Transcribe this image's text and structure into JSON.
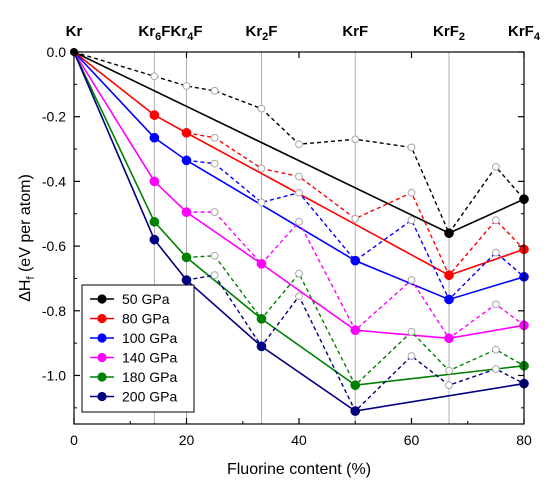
{
  "chart_data": {
    "type": "line",
    "xlabel": "Fluorine content (%)",
    "ylabel_main": "ΔH",
    "ylabel_sub": "f",
    "ylabel_rest": " (eV per atom)",
    "xlim": [
      0,
      80
    ],
    "ylim": [
      -1.15,
      0
    ],
    "xticks": [
      0,
      20,
      40,
      60,
      80
    ],
    "yticks": [
      0.0,
      -0.2,
      -0.4,
      -0.6,
      -0.8,
      -1.0
    ],
    "ytick_labels": [
      "0.0",
      "-0.2",
      "-0.4",
      "-0.6",
      "-0.8",
      "-1.0"
    ],
    "grid": "vertical lines at compositions",
    "legend_position": "bottom-left",
    "compositions": [
      {
        "x": 0,
        "label": "Kr",
        "sub": "",
        "tail": ""
      },
      {
        "x": 14.29,
        "label": "Kr",
        "sub": "6",
        "tail": "F"
      },
      {
        "x": 20,
        "label": "Kr",
        "sub": "4",
        "tail": "F"
      },
      {
        "x": 33.33,
        "label": "Kr",
        "sub": "2",
        "tail": "F"
      },
      {
        "x": 50,
        "label": "KrF",
        "sub": "",
        "tail": ""
      },
      {
        "x": 66.67,
        "label": "KrF",
        "sub": "2",
        "tail": ""
      },
      {
        "x": 80,
        "label": "KrF",
        "sub": "4",
        "tail": ""
      }
    ],
    "series": [
      {
        "name": "50 GPa",
        "color": "#000000",
        "hull": [
          [
            0,
            0
          ],
          [
            66.67,
            -0.56
          ],
          [
            80,
            -0.455
          ]
        ],
        "stable_points": [
          [
            66.67,
            -0.56
          ],
          [
            80,
            -0.455
          ]
        ],
        "metastable": [
          [
            0,
            0
          ],
          [
            14.29,
            -0.075
          ],
          [
            20,
            -0.105
          ],
          [
            25,
            -0.12
          ],
          [
            33.33,
            -0.175
          ],
          [
            40,
            -0.285
          ],
          [
            50,
            -0.27
          ],
          [
            60,
            -0.295
          ],
          [
            66.67,
            -0.56
          ],
          [
            75,
            -0.355
          ],
          [
            80,
            -0.455
          ]
        ],
        "open_points": [
          [
            14.29,
            -0.075
          ],
          [
            20,
            -0.105
          ],
          [
            25,
            -0.12
          ],
          [
            33.33,
            -0.175
          ],
          [
            40,
            -0.285
          ],
          [
            50,
            -0.27
          ],
          [
            60,
            -0.295
          ],
          [
            75,
            -0.355
          ]
        ]
      },
      {
        "name": "80 GPa",
        "color": "#ff0000",
        "hull": [
          [
            0,
            0
          ],
          [
            14.29,
            -0.195
          ],
          [
            20,
            -0.25
          ],
          [
            66.67,
            -0.69
          ],
          [
            80,
            -0.61
          ]
        ],
        "stable_points": [
          [
            14.29,
            -0.195
          ],
          [
            20,
            -0.25
          ],
          [
            66.67,
            -0.69
          ],
          [
            80,
            -0.61
          ]
        ],
        "metastable": [
          [
            20,
            -0.25
          ],
          [
            25,
            -0.265
          ],
          [
            33.33,
            -0.36
          ],
          [
            40,
            -0.385
          ],
          [
            50,
            -0.515
          ],
          [
            60,
            -0.435
          ],
          [
            66.67,
            -0.69
          ],
          [
            75,
            -0.52
          ],
          [
            80,
            -0.61
          ]
        ],
        "open_points": [
          [
            25,
            -0.265
          ],
          [
            33.33,
            -0.36
          ],
          [
            40,
            -0.385
          ],
          [
            50,
            -0.515
          ],
          [
            60,
            -0.435
          ],
          [
            75,
            -0.52
          ]
        ]
      },
      {
        "name": "100 GPa",
        "color": "#0000ff",
        "hull": [
          [
            0,
            0
          ],
          [
            14.29,
            -0.265
          ],
          [
            20,
            -0.335
          ],
          [
            50,
            -0.645
          ],
          [
            66.67,
            -0.765
          ],
          [
            80,
            -0.695
          ]
        ],
        "stable_points": [
          [
            14.29,
            -0.265
          ],
          [
            20,
            -0.335
          ],
          [
            50,
            -0.645
          ],
          [
            66.67,
            -0.765
          ],
          [
            80,
            -0.695
          ]
        ],
        "metastable": [
          [
            20,
            -0.335
          ],
          [
            25,
            -0.345
          ],
          [
            33.33,
            -0.465
          ],
          [
            40,
            -0.435
          ],
          [
            50,
            -0.645
          ],
          [
            60,
            -0.52
          ],
          [
            66.67,
            -0.765
          ],
          [
            75,
            -0.62
          ],
          [
            80,
            -0.695
          ]
        ],
        "open_points": [
          [
            25,
            -0.345
          ],
          [
            33.33,
            -0.465
          ],
          [
            40,
            -0.435
          ],
          [
            60,
            -0.52
          ],
          [
            75,
            -0.62
          ]
        ]
      },
      {
        "name": "140 GPa",
        "color": "#ff00ff",
        "hull": [
          [
            0,
            0
          ],
          [
            14.29,
            -0.4
          ],
          [
            20,
            -0.495
          ],
          [
            33.33,
            -0.655
          ],
          [
            50,
            -0.86
          ],
          [
            66.67,
            -0.885
          ],
          [
            80,
            -0.845
          ]
        ],
        "stable_points": [
          [
            14.29,
            -0.4
          ],
          [
            20,
            -0.495
          ],
          [
            33.33,
            -0.655
          ],
          [
            50,
            -0.86
          ],
          [
            66.67,
            -0.885
          ],
          [
            80,
            -0.845
          ]
        ],
        "metastable": [
          [
            20,
            -0.495
          ],
          [
            25,
            -0.495
          ],
          [
            33.33,
            -0.655
          ],
          [
            40,
            -0.525
          ],
          [
            50,
            -0.86
          ],
          [
            60,
            -0.705
          ],
          [
            66.67,
            -0.885
          ],
          [
            75,
            -0.78
          ],
          [
            80,
            -0.845
          ]
        ],
        "open_points": [
          [
            25,
            -0.495
          ],
          [
            40,
            -0.525
          ],
          [
            60,
            -0.705
          ],
          [
            75,
            -0.78
          ]
        ]
      },
      {
        "name": "180 GPa",
        "color": "#008000",
        "hull": [
          [
            0,
            0
          ],
          [
            14.29,
            -0.525
          ],
          [
            20,
            -0.635
          ],
          [
            33.33,
            -0.825
          ],
          [
            50,
            -1.03
          ],
          [
            80,
            -0.97
          ]
        ],
        "stable_points": [
          [
            14.29,
            -0.525
          ],
          [
            20,
            -0.635
          ],
          [
            33.33,
            -0.825
          ],
          [
            50,
            -1.03
          ],
          [
            80,
            -0.97
          ]
        ],
        "metastable": [
          [
            20,
            -0.635
          ],
          [
            25,
            -0.63
          ],
          [
            33.33,
            -0.825
          ],
          [
            40,
            -0.685
          ],
          [
            50,
            -1.03
          ],
          [
            60,
            -0.865
          ],
          [
            66.67,
            -0.985
          ],
          [
            75,
            -0.92
          ],
          [
            80,
            -0.97
          ]
        ],
        "open_points": [
          [
            25,
            -0.63
          ],
          [
            40,
            -0.685
          ],
          [
            60,
            -0.865
          ],
          [
            66.67,
            -0.985
          ],
          [
            75,
            -0.92
          ]
        ]
      },
      {
        "name": "200 GPa",
        "color": "#000080",
        "hull": [
          [
            0,
            0
          ],
          [
            14.29,
            -0.58
          ],
          [
            20,
            -0.705
          ],
          [
            33.33,
            -0.91
          ],
          [
            50,
            -1.11
          ],
          [
            80,
            -1.025
          ]
        ],
        "stable_points": [
          [
            14.29,
            -0.58
          ],
          [
            20,
            -0.705
          ],
          [
            33.33,
            -0.91
          ],
          [
            50,
            -1.11
          ],
          [
            80,
            -1.025
          ]
        ],
        "metastable": [
          [
            20,
            -0.705
          ],
          [
            25,
            -0.69
          ],
          [
            33.33,
            -0.91
          ],
          [
            40,
            -0.755
          ],
          [
            50,
            -1.11
          ],
          [
            60,
            -0.94
          ],
          [
            66.67,
            -1.03
          ],
          [
            75,
            -0.98
          ],
          [
            80,
            -1.025
          ]
        ],
        "open_points": [
          [
            25,
            -0.69
          ],
          [
            40,
            -0.755
          ],
          [
            60,
            -0.94
          ],
          [
            66.67,
            -1.03
          ],
          [
            75,
            -0.98
          ]
        ]
      }
    ]
  }
}
